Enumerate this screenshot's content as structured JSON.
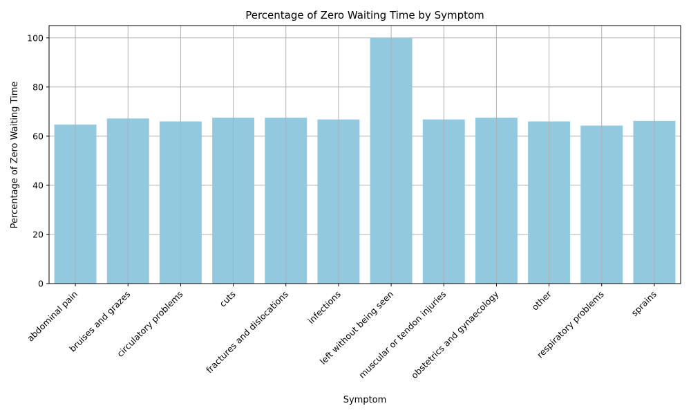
{
  "chart_data": {
    "type": "bar",
    "title": "Percentage of Zero Waiting Time by Symptom",
    "xlabel": "Symptom",
    "ylabel": "Percentage of Zero Waiting Time",
    "categories": [
      "abdominal pain",
      "bruises and grazes",
      "circulatory problems",
      "cuts",
      "fractures and dislocations",
      "infections",
      "left without being seen",
      "muscular or tendon injuries",
      "obstetrics and gynaecology",
      "other",
      "respiratory problems",
      "sprains"
    ],
    "values": [
      64.7,
      67.2,
      66.0,
      67.5,
      67.5,
      66.8,
      100.0,
      66.8,
      67.5,
      66.0,
      64.3,
      66.2
    ],
    "ylim": [
      0,
      105
    ],
    "yticks": [
      0,
      20,
      40,
      60,
      80,
      100
    ],
    "grid": true,
    "bar_color": "#92c9df",
    "grid_color": "#b0b0b0"
  }
}
